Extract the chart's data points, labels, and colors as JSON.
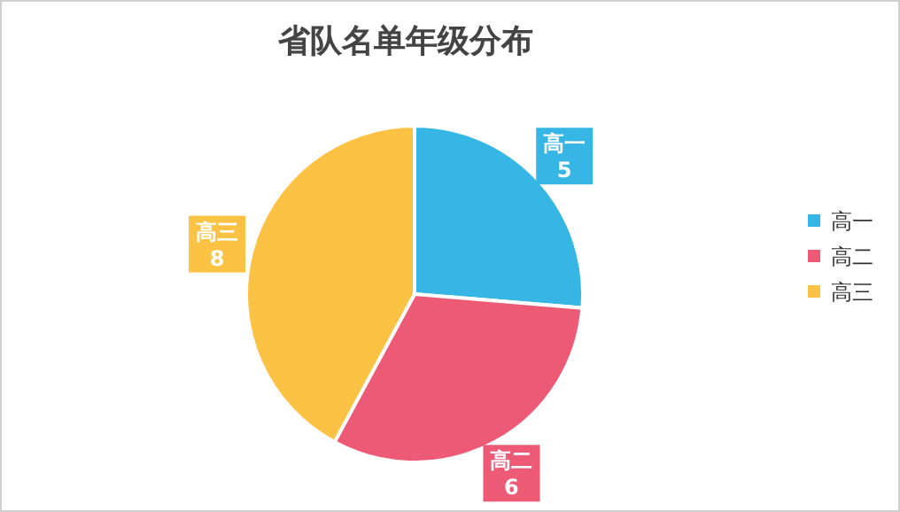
{
  "chart_data": {
    "type": "pie",
    "title": "省队名单年级分布",
    "categories": [
      "高一",
      "高二",
      "高三"
    ],
    "values": [
      5,
      6,
      8
    ],
    "colors": [
      "#35b6e4",
      "#ec5a76",
      "#fbc244"
    ],
    "data_labels": true,
    "legend": "right"
  }
}
